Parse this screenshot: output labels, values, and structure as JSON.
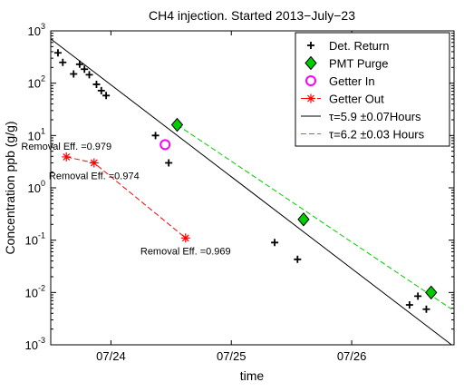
{
  "chart_data": {
    "type": "scatter",
    "title": "CH4 injection. Started 2013−July−23",
    "xlabel": "time",
    "ylabel": "Concentration ppb (g/g)",
    "y_scale": "log",
    "ylim": [
      0.001,
      1000
    ],
    "xlim": [
      23.5,
      26.85
    ],
    "x_ticks": [
      {
        "value": 24,
        "label": "07/24"
      },
      {
        "value": 25,
        "label": "07/25"
      },
      {
        "value": 26,
        "label": "07/26"
      }
    ],
    "y_ticks": [
      {
        "exp": -3,
        "base": "10",
        "sup": "-3"
      },
      {
        "exp": -2,
        "base": "10",
        "sup": "-2"
      },
      {
        "exp": -1,
        "base": "10",
        "sup": "-1"
      },
      {
        "exp": 0,
        "base": "10",
        "sup": "0"
      },
      {
        "exp": 1,
        "base": "10",
        "sup": "1"
      },
      {
        "exp": 2,
        "base": "10",
        "sup": "2"
      },
      {
        "exp": 3,
        "base": "10",
        "sup": "3"
      }
    ],
    "grid": false,
    "legend_position": "top-right",
    "series": [
      {
        "name": "Det. Return",
        "marker": "plus",
        "color": "#000000",
        "points": [
          [
            23.56,
            380
          ],
          [
            23.6,
            250
          ],
          [
            23.69,
            150
          ],
          [
            23.74,
            230
          ],
          [
            23.78,
            185
          ],
          [
            23.82,
            145
          ],
          [
            23.88,
            95
          ],
          [
            23.92,
            72
          ],
          [
            23.96,
            58
          ],
          [
            24.37,
            10
          ],
          [
            24.48,
            3.0
          ],
          [
            25.36,
            0.09
          ],
          [
            25.55,
            0.043
          ],
          [
            26.48,
            0.0058
          ],
          [
            26.55,
            0.0085
          ],
          [
            26.62,
            0.0048
          ]
        ]
      },
      {
        "name": "PMT Purge",
        "marker": "diamond",
        "color": "#00cc00",
        "points": [
          [
            24.55,
            16
          ],
          [
            25.6,
            0.25
          ],
          [
            26.66,
            0.01
          ]
        ]
      },
      {
        "name": "Getter In",
        "marker": "circle",
        "color": "#ff00ff",
        "points": [
          [
            24.45,
            6.7
          ]
        ]
      },
      {
        "name": "Getter Out",
        "marker": "asterisk",
        "color": "#ff0000",
        "line": "dashed",
        "points": [
          [
            23.63,
            3.9
          ],
          [
            23.86,
            3.0
          ],
          [
            24.62,
            0.11
          ]
        ]
      }
    ],
    "fit_lines": [
      {
        "name": "τ=5.9  ±0.07Hours",
        "color": "#000000",
        "style": "solid",
        "points": [
          [
            23.5,
            700
          ],
          [
            26.83,
            0.001
          ]
        ]
      },
      {
        "name": "τ=6.2  ±0.03 Hours",
        "color": "#00cc00",
        "style": "dashed",
        "points": [
          [
            24.55,
            16
          ],
          [
            26.83,
            0.0048
          ]
        ]
      }
    ],
    "annotations": [
      {
        "text": "Removal Eff. =0.979",
        "x": 23.63,
        "y": 3.9,
        "anchor": "above"
      },
      {
        "text": "Removal Eff. =0.974",
        "x": 23.86,
        "y": 3.0,
        "anchor": "below"
      },
      {
        "text": "Removal Eff. =0.969",
        "x": 24.62,
        "y": 0.11,
        "anchor": "below"
      }
    ]
  }
}
